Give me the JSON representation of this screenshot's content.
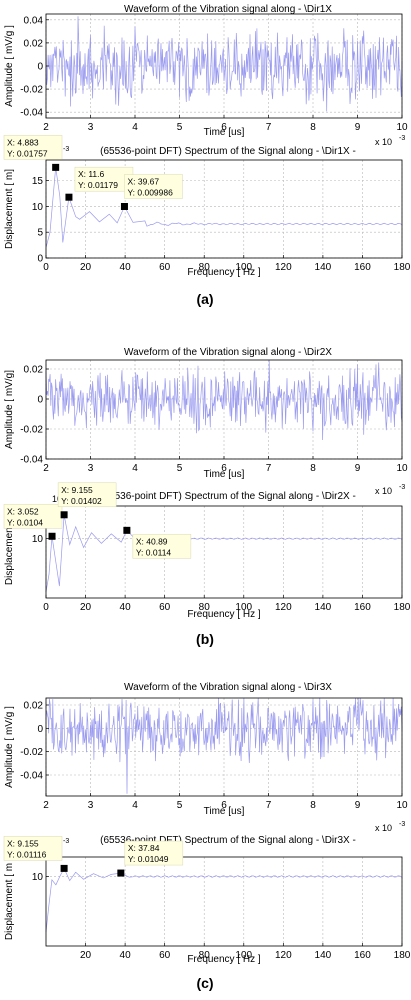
{
  "panel_labels": [
    "(a)",
    "(b)",
    "(c)"
  ],
  "chart_data": [
    {
      "type": "line",
      "title": "Waveform of the Vibration signal along - \\Dir1X",
      "xlabel": "Time [us]",
      "ylabel": "Amplitude [ mV/g ]",
      "x_exponent": "x 10",
      "x_exponent_power": "-3",
      "xlim": [
        2,
        10
      ],
      "ylim": [
        -0.045,
        0.045
      ],
      "xticks": [
        2,
        3,
        4,
        5,
        6,
        7,
        8,
        9,
        10
      ],
      "yticks": [
        -0.04,
        -0.02,
        0,
        0.02,
        0.04
      ],
      "ytick_labels": [
        "-0.04",
        "-0.02",
        "0",
        "0.02",
        "0.04"
      ],
      "grid": true,
      "series": [
        {
          "kind": "noise",
          "amplitude": 0.036,
          "seed": 11,
          "spikes": [
            {
              "x": 2.72,
              "y": 0.043
            }
          ]
        }
      ],
      "color": "#9a9af0"
    },
    {
      "type": "line",
      "title": "(65536-point DFT) Spectrum of the Signal along - \\Dir1X -",
      "xlabel": "Frequency [ Hz ]",
      "ylabel": "Displacement [ m]",
      "y_exponent": "10",
      "y_exponent_power": "-3",
      "xlim": [
        0,
        180
      ],
      "ylim": [
        0,
        19
      ],
      "xticks": [
        0,
        20,
        40,
        60,
        80,
        100,
        120,
        140,
        160,
        180
      ],
      "yticks": [
        0,
        5,
        10,
        15
      ],
      "ytick_labels": [
        "0",
        "5",
        "10",
        "15"
      ],
      "grid": true,
      "series": [
        {
          "kind": "spectrum",
          "start": 2,
          "level": 6.6,
          "amp": 10,
          "decay": 0.05,
          "period": 9.4,
          "points": [
            [
              0,
              2
            ],
            [
              2,
              5
            ],
            [
              4.883,
              17.57
            ],
            [
              7,
              12
            ],
            [
              8.5,
              3
            ],
            [
              11.6,
              11.79
            ],
            [
              15,
              8
            ],
            [
              17,
              7.5
            ],
            [
              22,
              9
            ],
            [
              27,
              7
            ],
            [
              32,
              8.5
            ],
            [
              36,
              6.8
            ],
            [
              39.67,
              9.986
            ],
            [
              44,
              6.9
            ],
            [
              50,
              7.2
            ]
          ]
        }
      ],
      "annotations": [
        {
          "x": 4.883,
          "y": 17.57,
          "label_x": "X: 4.883",
          "label_y": "Y: 0.01757"
        },
        {
          "x": 11.6,
          "y": 11.79,
          "label_x": "X: 11.6",
          "label_y": "Y: 0.01179"
        },
        {
          "x": 39.67,
          "y": 9.986,
          "label_x": "X: 39.67",
          "label_y": "Y: 0.009986"
        }
      ],
      "color": "#9a9af0"
    },
    {
      "type": "line",
      "title": "Waveform of the Vibration signal along - \\Dir2X",
      "xlabel": "Time [us]",
      "ylabel": "Amplitude [ mV/g]",
      "x_exponent": "x 10",
      "x_exponent_power": "-3",
      "xlim": [
        2,
        10
      ],
      "ylim": [
        -0.04,
        0.026
      ],
      "xticks": [
        2,
        3,
        4,
        5,
        6,
        7,
        8,
        9,
        10
      ],
      "yticks": [
        -0.04,
        -0.02,
        0,
        0.02
      ],
      "ytick_labels": [
        "-0.04",
        "-0.02",
        "0",
        "0.02"
      ],
      "grid": true,
      "series": [
        {
          "kind": "noise",
          "amplitude": 0.024,
          "seed": 23,
          "spikes": []
        }
      ],
      "color": "#9a9af0"
    },
    {
      "type": "line",
      "title": "(65536-point DFT) Spectrum of the Signal along - \\Dir2X -",
      "xlabel": "Frequency [ Hz ]",
      "ylabel": "Displacement [",
      "y_exponent": "10",
      "y_exponent_power": "-3",
      "xlim": [
        0,
        180
      ],
      "ylim": [
        0,
        15.5
      ],
      "xticks": [
        0,
        20,
        40,
        60,
        80,
        100,
        120,
        140,
        160,
        180
      ],
      "yticks": [
        10
      ],
      "ytick_labels": [
        "10"
      ],
      "grid": true,
      "series": [
        {
          "kind": "spectrum",
          "start": 0,
          "level": 10,
          "amp": 4.5,
          "decay": 0.06,
          "period": 6,
          "points": [
            [
              0,
              1
            ],
            [
              1.5,
              4
            ],
            [
              3.052,
              10.4
            ],
            [
              5,
              6
            ],
            [
              6.8,
              2
            ],
            [
              9.155,
              14.02
            ],
            [
              12,
              9
            ],
            [
              15,
              12
            ],
            [
              19,
              8.5
            ],
            [
              23,
              11
            ],
            [
              28,
              9.2
            ],
            [
              33,
              10.8
            ],
            [
              38,
              9.4
            ],
            [
              40.89,
              11.4
            ],
            [
              46,
              9.6
            ]
          ]
        }
      ],
      "annotations": [
        {
          "x": 3.052,
          "y": 10.4,
          "label_x": "X: 3.052",
          "label_y": "Y: 0.0104"
        },
        {
          "x": 9.155,
          "y": 14.02,
          "label_x": "X: 9.155",
          "label_y": "Y: 0.01402"
        },
        {
          "x": 40.89,
          "y": 11.4,
          "label_x": "X: 40.89",
          "label_y": "Y: 0.0114"
        }
      ],
      "color": "#9a9af0"
    },
    {
      "type": "line",
      "title": "Waveform of the Vibration signal along - \\Dir3X",
      "xlabel": "Time [us]",
      "ylabel": "Amplitude [ mV/g ]",
      "x_exponent": "x 10",
      "x_exponent_power": "-3",
      "xlim": [
        2,
        10
      ],
      "ylim": [
        -0.058,
        0.026
      ],
      "xticks": [
        2,
        3,
        4,
        5,
        6,
        7,
        8,
        9,
        10
      ],
      "yticks": [
        -0.04,
        -0.02,
        0,
        0.02
      ],
      "ytick_labels": [
        "-0.04",
        "-0.02",
        "0",
        "0.02"
      ],
      "grid": true,
      "series": [
        {
          "kind": "noise",
          "amplitude": 0.03,
          "seed": 37,
          "spikes": [
            {
              "x": 3.82,
              "y": -0.056
            }
          ]
        }
      ],
      "color": "#9a9af0"
    },
    {
      "type": "line",
      "title": "(65536-point DFT) Spectrum of the Signal along - \\Dir3X -",
      "xlabel": "Frequency [ Hz ]",
      "ylabel": "Displacement [ m",
      "y_exponent": "10",
      "y_exponent_power": "-3",
      "xlim": [
        0,
        180
      ],
      "ylim": [
        0,
        12.8
      ],
      "xticks": [
        20,
        40,
        60,
        80,
        100,
        120,
        140,
        160,
        180
      ],
      "yticks": [
        10
      ],
      "ytick_labels": [
        "10"
      ],
      "grid": true,
      "series": [
        {
          "kind": "spectrum",
          "start": 2,
          "level": 10,
          "amp": 2,
          "decay": 0.09,
          "period": 5.5,
          "points": [
            [
              0,
              2
            ],
            [
              1.5,
              6
            ],
            [
              3,
              9.5
            ],
            [
              5,
              8.8
            ],
            [
              7,
              10
            ],
            [
              9.155,
              11.16
            ],
            [
              12,
              9.4
            ],
            [
              15,
              10.6
            ],
            [
              19,
              9.6
            ],
            [
              24,
              10.4
            ],
            [
              29,
              9.8
            ],
            [
              33,
              10.3
            ],
            [
              37.84,
              10.49
            ],
            [
              42,
              9.9
            ]
          ]
        }
      ],
      "annotations": [
        {
          "x": 9.155,
          "y": 11.16,
          "label_x": "X: 9.155",
          "label_y": "Y: 0.01116"
        },
        {
          "x": 37.84,
          "y": 10.49,
          "label_x": "X: 37.84",
          "label_y": "Y: 0.01049"
        }
      ],
      "color": "#9a9af0"
    }
  ]
}
